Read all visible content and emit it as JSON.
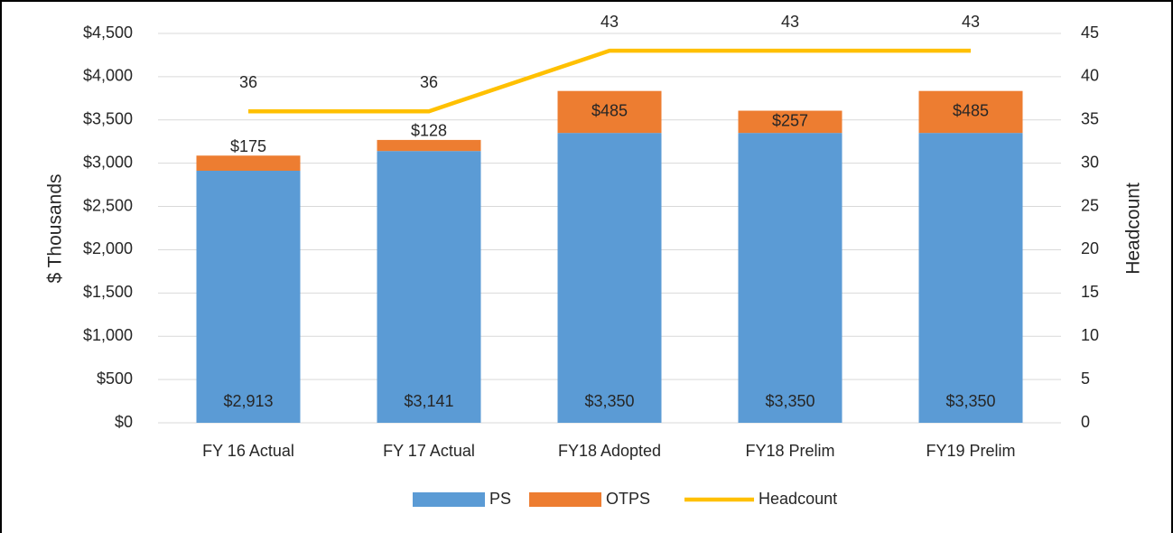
{
  "chart_data": {
    "type": "bar",
    "stacked": true,
    "categories": [
      "FY 16 Actual",
      "FY 17 Actual",
      "FY18 Adopted",
      "FY18 Prelim",
      "FY19 Prelim"
    ],
    "series": [
      {
        "name": "PS",
        "color": "#5b9bd5",
        "values": [
          2913,
          3141,
          3350,
          3350,
          3350
        ],
        "value_labels": [
          "$2,913",
          "$3,141",
          "$3,350",
          "$3,350",
          "$3,350"
        ]
      },
      {
        "name": "OTPS",
        "color": "#ed7d31",
        "values": [
          175,
          128,
          485,
          257,
          485
        ],
        "value_labels": [
          "$175",
          "$128",
          "$485",
          "$257",
          "$485"
        ]
      },
      {
        "name": "Headcount",
        "type": "line",
        "axis": "y2",
        "color": "#ffc000",
        "values": [
          36,
          36,
          43,
          43,
          43
        ]
      }
    ],
    "ylabel": "$ Thousands",
    "y2label": "Headcount",
    "ylim": [
      0,
      4500
    ],
    "yticks": [
      {
        "value": 0,
        "label": "$0"
      },
      {
        "value": 500,
        "label": "$500"
      },
      {
        "value": 1000,
        "label": "$1,000"
      },
      {
        "value": 1500,
        "label": "$1,500"
      },
      {
        "value": 2000,
        "label": "$2,000"
      },
      {
        "value": 2500,
        "label": "$2,500"
      },
      {
        "value": 3000,
        "label": "$3,000"
      },
      {
        "value": 3500,
        "label": "$3,500"
      },
      {
        "value": 4000,
        "label": "$4,000"
      },
      {
        "value": 4500,
        "label": "$4,500"
      }
    ],
    "y2lim": [
      0,
      45
    ],
    "y2ticks": [
      0,
      5,
      10,
      15,
      20,
      25,
      30,
      35,
      40,
      45
    ],
    "grid": true,
    "legend": "bottom"
  }
}
